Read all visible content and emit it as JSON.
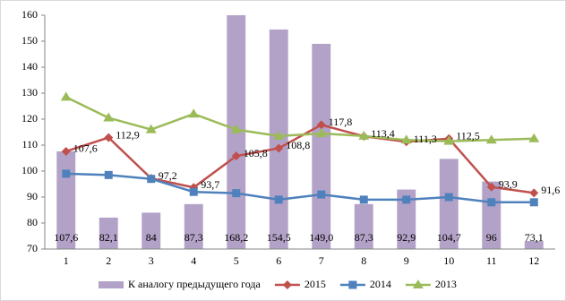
{
  "chart_data": {
    "type": "combo",
    "categories": [
      "1",
      "2",
      "3",
      "4",
      "5",
      "6",
      "7",
      "8",
      "9",
      "10",
      "11",
      "12"
    ],
    "ylim": [
      70,
      160
    ],
    "yticks": [
      70,
      80,
      90,
      100,
      110,
      120,
      130,
      140,
      150,
      160
    ],
    "series": [
      {
        "name": "К аналогу предыдущего года",
        "type": "bar",
        "color": "#b3a2c7",
        "values": [
          107.6,
          82.1,
          84,
          87.3,
          168.2,
          154.5,
          149.0,
          87.3,
          92.9,
          104.7,
          96,
          73.1
        ],
        "value_labels": [
          "107,6",
          "82,1",
          "84",
          "87,3",
          "168,2",
          "154,5",
          "149,0",
          "87,3",
          "92,9",
          "104,7",
          "96",
          "73,1"
        ]
      },
      {
        "name": "2015",
        "type": "line",
        "marker": "diamond",
        "color": "#c0504d",
        "values": [
          107.6,
          112.9,
          97.2,
          93.7,
          105.8,
          108.8,
          117.8,
          113.4,
          111.3,
          112.5,
          93.9,
          91.6
        ],
        "value_labels": [
          "107,6",
          "112,9",
          "97,2",
          "93,7",
          "105,8",
          "108,8",
          "117,8",
          "113,4",
          "111,3",
          "112,5",
          "93,9",
          "91,6"
        ]
      },
      {
        "name": "2014",
        "type": "line",
        "marker": "square",
        "color": "#4f81bd",
        "values": [
          99,
          98.5,
          97,
          92,
          91.5,
          89,
          91,
          89,
          89,
          90,
          88,
          88
        ]
      },
      {
        "name": "2013",
        "type": "line",
        "marker": "triangle",
        "color": "#9bbb59",
        "values": [
          128.5,
          120.5,
          116,
          122,
          116,
          113.5,
          114.5,
          113.5,
          112,
          111.5,
          112,
          112.5
        ]
      }
    ]
  }
}
